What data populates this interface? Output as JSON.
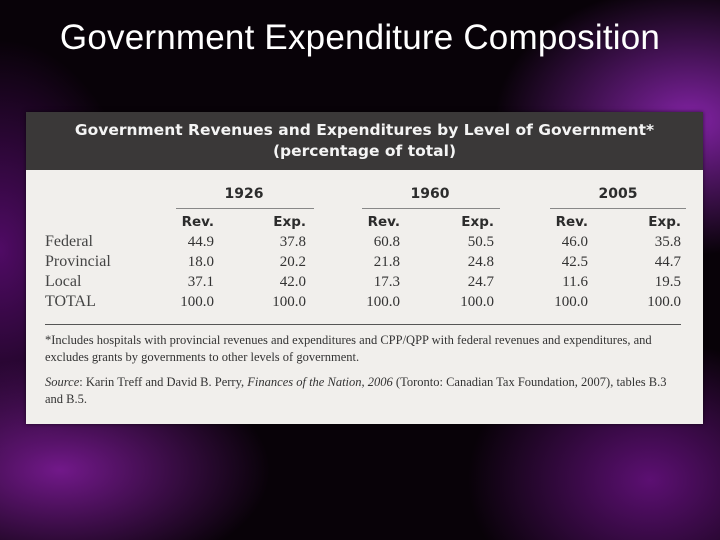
{
  "slide": {
    "title": "Government Expenditure Composition"
  },
  "table": {
    "title_line1": "Government Revenues and Expenditures by Level of Government*",
    "title_line2": "(percentage of total)",
    "years": [
      "1926",
      "1960",
      "2005"
    ],
    "subheaders": [
      "Rev.",
      "Exp.",
      "Rev.",
      "Exp.",
      "Rev.",
      "Exp."
    ],
    "rows": [
      {
        "label": "Federal",
        "values": [
          "44.9",
          "37.8",
          "60.8",
          "50.5",
          "46.0",
          "35.8"
        ]
      },
      {
        "label": "Provincial",
        "values": [
          "18.0",
          "20.2",
          "21.8",
          "24.8",
          "42.5",
          "44.7"
        ]
      },
      {
        "label": "Local",
        "values": [
          "37.1",
          "42.0",
          "17.3",
          "24.7",
          "11.6",
          "19.5"
        ]
      },
      {
        "label": "TOTAL",
        "values": [
          "100.0",
          "100.0",
          "100.0",
          "100.0",
          "100.0",
          "100.0"
        ]
      }
    ],
    "footnote": "*Includes hospitals with provincial revenues and expenditures and CPP/QPP with federal revenues and expenditures, and excludes grants by governments to other levels of government.",
    "source_prefix": "Source",
    "source_authors": ": Karin Treff and David B. Perry, ",
    "source_title": "Finances of the Nation, 2006",
    "source_rest": " (Toronto: Canadian Tax Foundation, 2007), tables B.3 and B.5."
  }
}
